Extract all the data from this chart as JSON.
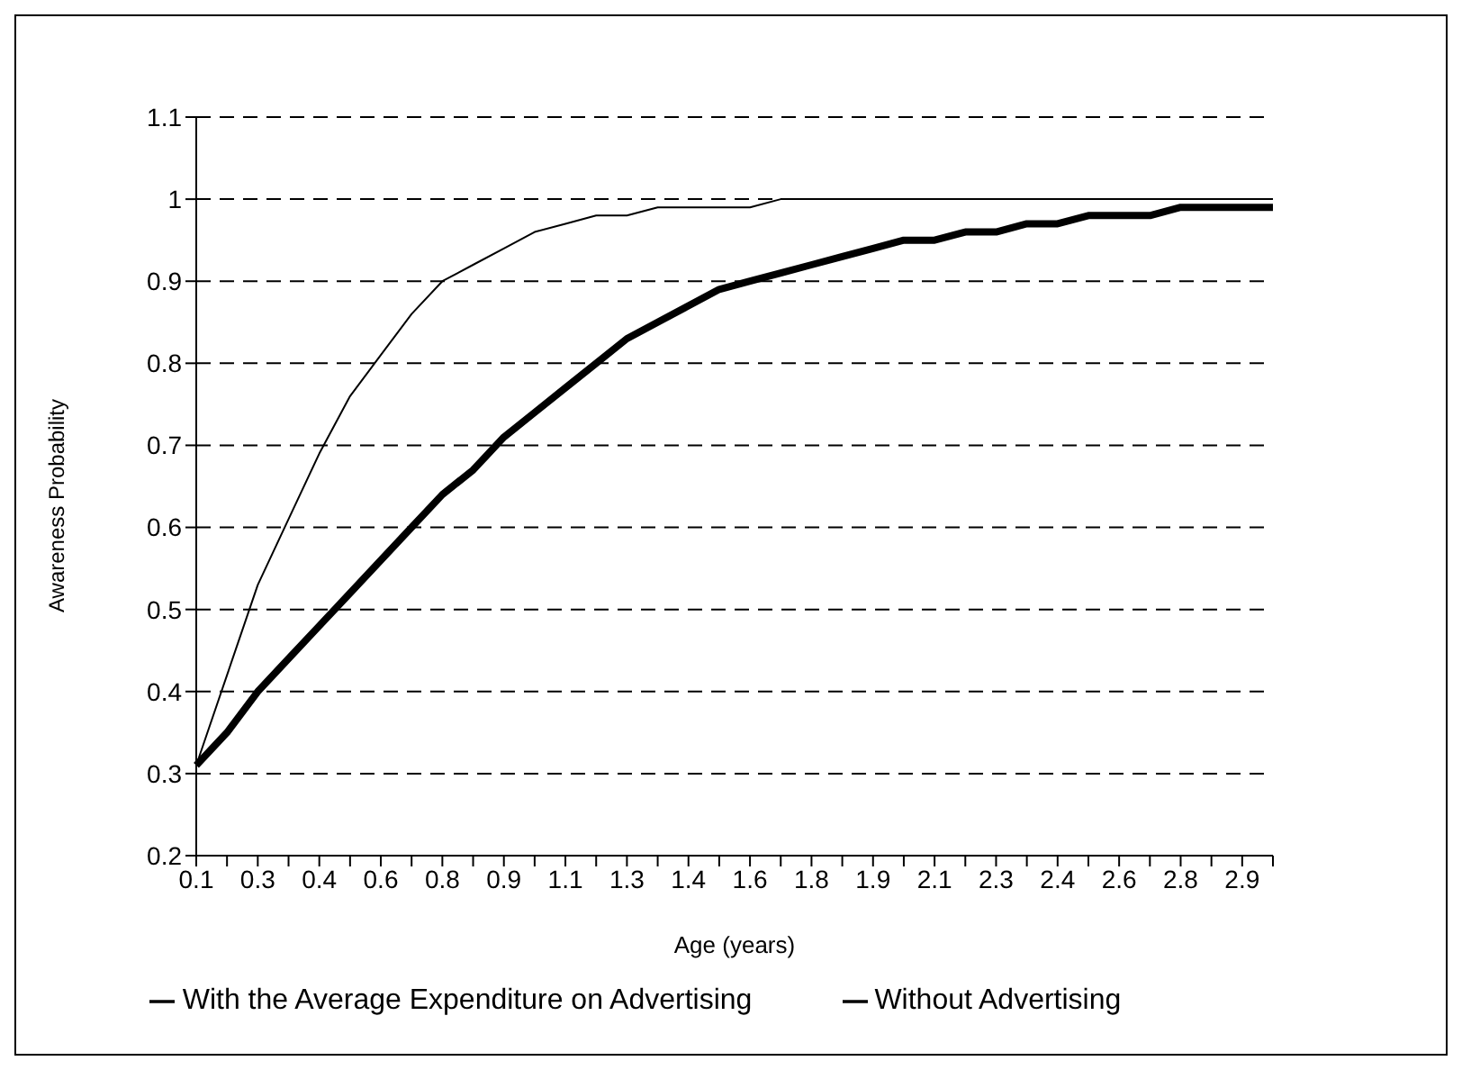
{
  "chart_data": {
    "type": "line",
    "xlabel": "Age (years)",
    "ylabel": "Awareness Probability",
    "categories": [
      "0.1",
      null,
      "0.3",
      null,
      "0.4",
      null,
      "0.6",
      null,
      "0.8",
      null,
      "0.9",
      null,
      "1.1",
      null,
      "1.3",
      null,
      "1.4",
      null,
      "1.6",
      null,
      "1.8",
      null,
      "1.9",
      null,
      "2.1",
      null,
      "2.3",
      null,
      "2.4",
      null,
      "2.6",
      null,
      "2.8",
      null,
      "2.9",
      null
    ],
    "series": [
      {
        "name": "Without Advertising",
        "color": "#000000",
        "values": [
          0.31,
          0.42,
          0.53,
          0.61,
          0.69,
          0.76,
          0.81,
          0.86,
          0.9,
          0.92,
          0.94,
          0.96,
          0.97,
          0.98,
          0.98,
          0.99,
          0.99,
          0.99,
          0.99,
          1,
          1,
          1,
          1,
          1,
          1,
          1,
          1,
          1,
          1,
          1,
          1,
          1,
          1,
          1,
          1,
          1
        ]
      },
      {
        "name": "With the Average Expenditure on Advertising",
        "color": "#000000",
        "values": [
          0.31,
          0.35,
          0.4,
          0.44,
          0.48,
          0.52,
          0.56,
          0.6,
          0.64,
          0.67,
          0.71,
          0.74,
          0.77,
          0.8,
          0.83,
          0.85,
          0.87,
          0.89,
          0.9,
          0.91,
          0.92,
          0.93,
          0.94,
          0.95,
          0.95,
          0.96,
          0.96,
          0.97,
          0.97,
          0.98,
          0.98,
          0.98,
          0.99,
          0.99,
          0.99,
          0.99
        ]
      }
    ],
    "ylim": [
      0.2,
      1.1
    ],
    "yticks": [
      0.2,
      0.3,
      0.4,
      0.5,
      0.6,
      0.7,
      0.8,
      0.9,
      1,
      1.1
    ],
    "grid": "y",
    "legend": "bottom",
    "marker": "none",
    "line_style": "solid"
  }
}
